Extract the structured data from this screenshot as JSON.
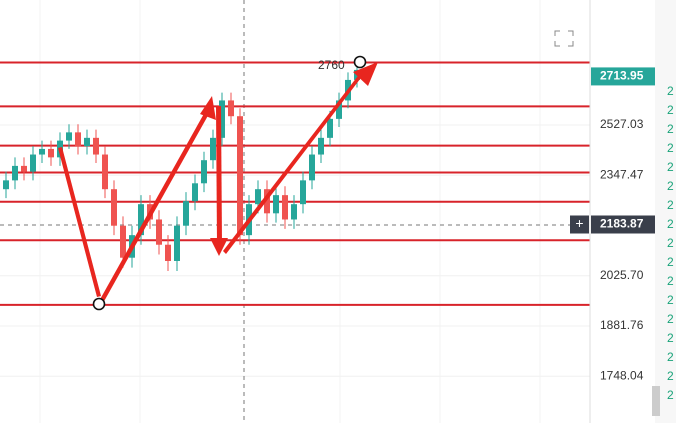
{
  "chart_data": {
    "type": "candlestick",
    "annotation": "2760",
    "log_scale": true,
    "ylim": [
      1632,
      3036
    ],
    "yticks": [
      2527.03,
      2347.47,
      {
        "value": 2025.7,
        "label": "2025.70"
      },
      1881.76,
      1748.04
    ],
    "last_price": 2713.95,
    "crosshair_price": 2183.87,
    "crosshair_button": "+",
    "levels": [
      2770,
      2597,
      2452,
      2357,
      2258,
      2134,
      1941
    ],
    "level_color": "#d8232a",
    "up_color": "#26a69a",
    "down_color": "#ef5350",
    "open": [
      2300,
      2330,
      2380,
      2360,
      2420,
      2440,
      2410,
      2470,
      2500,
      2450,
      2480,
      2420,
      2300,
      2180,
      2080,
      2150,
      2250,
      2200,
      2120,
      2070,
      2180,
      2260,
      2320,
      2400,
      2480,
      2620,
      2560,
      2150,
      2250,
      2300,
      2220,
      2280,
      2200,
      2250,
      2330,
      2420,
      2480,
      2550,
      2620,
      2700
    ],
    "high": [
      2360,
      2410,
      2410,
      2450,
      2470,
      2470,
      2500,
      2530,
      2530,
      2510,
      2510,
      2450,
      2330,
      2210,
      2180,
      2280,
      2280,
      2230,
      2150,
      2210,
      2290,
      2350,
      2430,
      2510,
      2650,
      2650,
      2590,
      2280,
      2330,
      2330,
      2310,
      2310,
      2280,
      2360,
      2450,
      2510,
      2580,
      2650,
      2730,
      2770
    ],
    "low": [
      2270,
      2300,
      2330,
      2330,
      2390,
      2380,
      2380,
      2440,
      2420,
      2420,
      2390,
      2270,
      2150,
      2050,
      2050,
      2120,
      2170,
      2090,
      2040,
      2040,
      2150,
      2230,
      2290,
      2370,
      2450,
      2530,
      2120,
      2120,
      2220,
      2190,
      2190,
      2170,
      2170,
      2220,
      2300,
      2390,
      2450,
      2520,
      2590,
      2670
    ],
    "close": [
      2330,
      2380,
      2360,
      2420,
      2440,
      2410,
      2470,
      2500,
      2450,
      2480,
      2420,
      2300,
      2180,
      2080,
      2150,
      2250,
      2200,
      2120,
      2070,
      2180,
      2260,
      2320,
      2400,
      2480,
      2620,
      2560,
      2150,
      2250,
      2300,
      2220,
      2280,
      2200,
      2250,
      2330,
      2420,
      2480,
      2550,
      2620,
      2700,
      2740
    ]
  },
  "side_list": [
    "2",
    "2",
    "2",
    "2",
    "2",
    "2",
    "2",
    "2",
    "2",
    "2",
    "2",
    "2",
    "2",
    "2",
    "2",
    "2",
    "2"
  ]
}
